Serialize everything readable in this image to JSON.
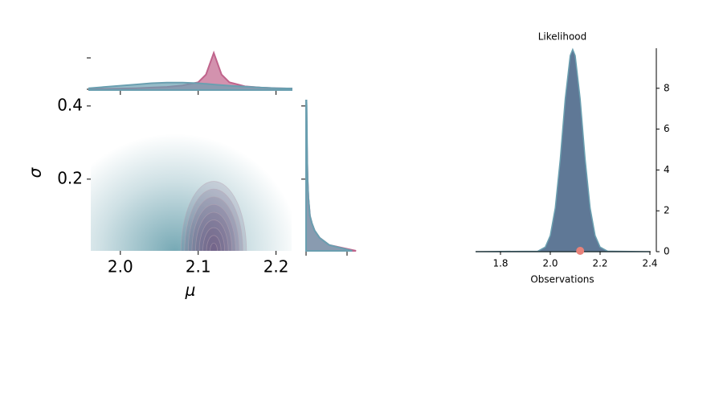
{
  "chart_data": [
    {
      "type": "joint",
      "xlabel": "μ",
      "ylabel": "σ",
      "xlim": [
        1.962,
        2.22
      ],
      "ylim": [
        0.004,
        0.415
      ],
      "xticks": [
        {
          "value": 2.0,
          "label": "2.0"
        },
        2.1,
        2.2
      ],
      "yticks": [
        0.2,
        0.4
      ],
      "components": [
        {
          "color": "#5f9aa8",
          "x": 2.07,
          "y": 0.004,
          "x_spread": 0.16,
          "y_spread": 0.32
        },
        {
          "color": "#6b4f7f",
          "x": 2.12,
          "y": 0.004,
          "x_spread": 0.042,
          "y_spread": 0.19
        }
      ],
      "top_marginal": {
        "ylim": [
          0,
          13
        ],
        "x": [
          1.96,
          1.98,
          2.0,
          2.02,
          2.04,
          2.06,
          2.08,
          2.1,
          2.11,
          2.12,
          2.13,
          2.14,
          2.16,
          2.18,
          2.2,
          2.22
        ],
        "series": [
          {
            "color": "#c0648c",
            "values": [
              0.3,
              0.4,
              0.5,
              0.6,
              0.8,
              1.0,
              1.5,
              2.5,
              5,
              12,
              5,
              2.5,
              1.2,
              0.8,
              0.6,
              0.5
            ]
          },
          {
            "color": "#6a9fb0",
            "values": [
              0.6,
              1.0,
              1.4,
              1.8,
              2.2,
              2.4,
              2.4,
              2.2,
              2.0,
              1.8,
              1.6,
              1.4,
              1.1,
              0.8,
              0.6,
              0.5
            ]
          }
        ]
      },
      "right_marginal": {
        "xlim": [
          0,
          14
        ],
        "y": [
          0.004,
          0.02,
          0.04,
          0.06,
          0.08,
          0.1,
          0.15,
          0.2,
          0.25,
          0.3,
          0.35,
          0.4,
          0.415
        ],
        "series": [
          {
            "color": "#c0648c",
            "values": [
              13,
              6,
              3.5,
              2.2,
              1.5,
              1.0,
              0.6,
              0.4,
              0.3,
              0.2,
              0.15,
              0.1,
              0.1
            ]
          },
          {
            "color": "#6a9fb0",
            "values": [
              12,
              6,
              3.5,
              2.2,
              1.5,
              1.0,
              0.6,
              0.4,
              0.3,
              0.25,
              0.2,
              0.15,
              0.1
            ]
          }
        ]
      }
    },
    {
      "type": "density",
      "title": "Likelihood",
      "xlabel": "Observations",
      "xlim": [
        1.7,
        2.4
      ],
      "ylim": [
        0,
        9.96
      ],
      "xticks": [
        1.8,
        {
          "value": 2.0,
          "label": "2.0"
        },
        2.2,
        2.4
      ],
      "yticks": [
        0,
        2,
        4,
        6,
        8
      ],
      "color": "#5f7896",
      "edge_color": "#6a9fb0",
      "x": [
        1.7,
        1.95,
        1.98,
        2.0,
        2.02,
        2.04,
        2.06,
        2.08,
        2.09,
        2.1,
        2.12,
        2.14,
        2.16,
        2.18,
        2.2,
        2.23,
        2.4
      ],
      "values": [
        0,
        0.022,
        0.225,
        0.79,
        2.14,
        4.52,
        7.48,
        9.6,
        9.9,
        9.6,
        7.48,
        4.52,
        2.14,
        0.79,
        0.225,
        0.022,
        0
      ],
      "observed": {
        "x": 2.12,
        "y": 0,
        "color": "#e8827a"
      }
    }
  ]
}
